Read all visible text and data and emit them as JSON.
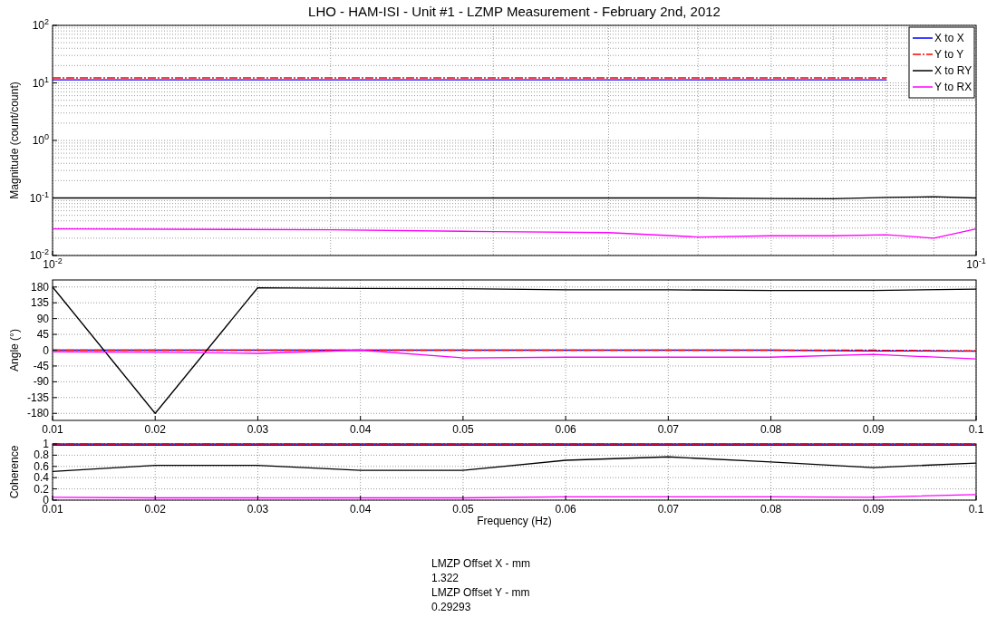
{
  "chart_data": [
    {
      "type": "line",
      "title": "LHO - HAM-ISI - Unit #1 - LZMP Measurement - February 2nd, 2012",
      "ylabel": "Magnitude (count/count)",
      "log": "xy",
      "grid": true,
      "legend": "top right",
      "marker": "none",
      "x": [
        0.01,
        0.02,
        0.03,
        0.04,
        0.05,
        0.06,
        0.07,
        0.08,
        0.09,
        0.1
      ],
      "xlim": [
        0.01,
        0.1
      ],
      "xticks": [
        {
          "value": 0.01,
          "label": "10$^{-2}$"
        },
        {
          "value": 0.1,
          "label": "10$^{-1}$"
        }
      ],
      "ylim": [
        0.01,
        100
      ],
      "yticks": [
        {
          "value": 0.01,
          "label": "10$^{-2}$"
        },
        {
          "value": 0.1,
          "label": "10$^{-1}$"
        },
        {
          "value": 1,
          "label": "10$^{0}$"
        },
        {
          "value": 10,
          "label": "10$^{1}$"
        },
        {
          "value": 100,
          "label": "10$^{2}$"
        }
      ],
      "series": [
        {
          "name": "X to X",
          "color": "#0000ff",
          "line_style": "solid",
          "values": [
            11.3,
            11.3,
            11.3,
            11.3,
            11.3,
            11.3,
            11.3,
            11.3,
            null,
            null
          ]
        },
        {
          "name": "Y to Y",
          "color": "#ff0000",
          "line_style": "dashed",
          "values": [
            12.2,
            12.2,
            12.2,
            12.2,
            12.2,
            12.2,
            12.2,
            12.2,
            null,
            null
          ]
        },
        {
          "name": "X to RY",
          "color": "#000000",
          "line_style": "solid",
          "values": [
            0.1,
            0.1,
            0.1,
            0.1,
            0.1,
            0.098,
            0.097,
            0.102,
            0.105,
            0.1
          ]
        },
        {
          "name": "Y to RX",
          "color": "#ff00ff",
          "line_style": "solid",
          "values": [
            0.029,
            0.028,
            0.026,
            0.025,
            0.021,
            0.022,
            0.022,
            0.023,
            0.02,
            0.029
          ]
        }
      ]
    },
    {
      "type": "line",
      "ylabel": "Angle (°)",
      "grid": true,
      "marker": "none",
      "x": [
        0.01,
        0.02,
        0.03,
        0.04,
        0.05,
        0.06,
        0.07,
        0.08,
        0.09,
        0.1
      ],
      "xlim": [
        0.01,
        0.1
      ],
      "xticks": [
        0.01,
        0.02,
        0.03,
        0.04,
        0.05,
        0.06,
        0.07,
        0.08,
        0.09,
        0.1
      ],
      "ylim": [
        -200,
        200
      ],
      "yticks": [
        -180,
        -135,
        -90,
        -45,
        0,
        45,
        90,
        135,
        180
      ],
      "series": [
        {
          "color": "#0000ff",
          "line_style": "solid",
          "values": [
            0,
            0,
            0,
            0,
            0,
            0,
            0,
            0,
            -2,
            -3
          ]
        },
        {
          "color": "#ff0000",
          "line_style": "dashed",
          "values": [
            0,
            0,
            0,
            0,
            0,
            0,
            0,
            0,
            0,
            -2
          ]
        },
        {
          "color": "#000000",
          "line_style": "solid",
          "values": [
            180,
            -180,
            178,
            176,
            175,
            172,
            172,
            170,
            170,
            174
          ]
        },
        {
          "color": "#ff00ff",
          "line_style": "solid",
          "values": [
            -5,
            -6,
            -9,
            0,
            -22,
            -20,
            -20,
            -20,
            -12,
            -25
          ]
        }
      ]
    },
    {
      "type": "line",
      "ylabel": "Coherence",
      "xlabel": "Frequency (Hz)",
      "grid": true,
      "marker": "none",
      "x": [
        0.01,
        0.02,
        0.03,
        0.04,
        0.05,
        0.06,
        0.07,
        0.08,
        0.09,
        0.1
      ],
      "xlim": [
        0.01,
        0.1
      ],
      "xticks": [
        0.01,
        0.02,
        0.03,
        0.04,
        0.05,
        0.06,
        0.07,
        0.08,
        0.09,
        0.1
      ],
      "ylim": [
        0,
        1
      ],
      "yticks": [
        0,
        0.2,
        0.4,
        0.6,
        0.8,
        1
      ],
      "series": [
        {
          "color": "#0000ff",
          "line_style": "solid",
          "values": [
            0.98,
            0.98,
            0.98,
            0.98,
            0.98,
            0.98,
            0.98,
            0.98,
            0.98,
            0.98
          ]
        },
        {
          "color": "#ff0000",
          "line_style": "dashed",
          "values": [
            1,
            1,
            1,
            1,
            1,
            1,
            1,
            1,
            1,
            1
          ]
        },
        {
          "color": "#000000",
          "line_style": "solid",
          "values": [
            0.51,
            0.62,
            0.62,
            0.53,
            0.53,
            0.71,
            0.77,
            0.68,
            0.58,
            0.66
          ]
        },
        {
          "color": "#ff00ff",
          "line_style": "solid",
          "values": [
            0.05,
            0.04,
            0.04,
            0.04,
            0.04,
            0.06,
            0.06,
            0.06,
            0.05,
            0.1
          ]
        }
      ],
      "annotations": [
        "LMZP Offset X - mm",
        "1.322",
        "LMZP Offset Y - mm",
        "0.29293"
      ]
    }
  ]
}
